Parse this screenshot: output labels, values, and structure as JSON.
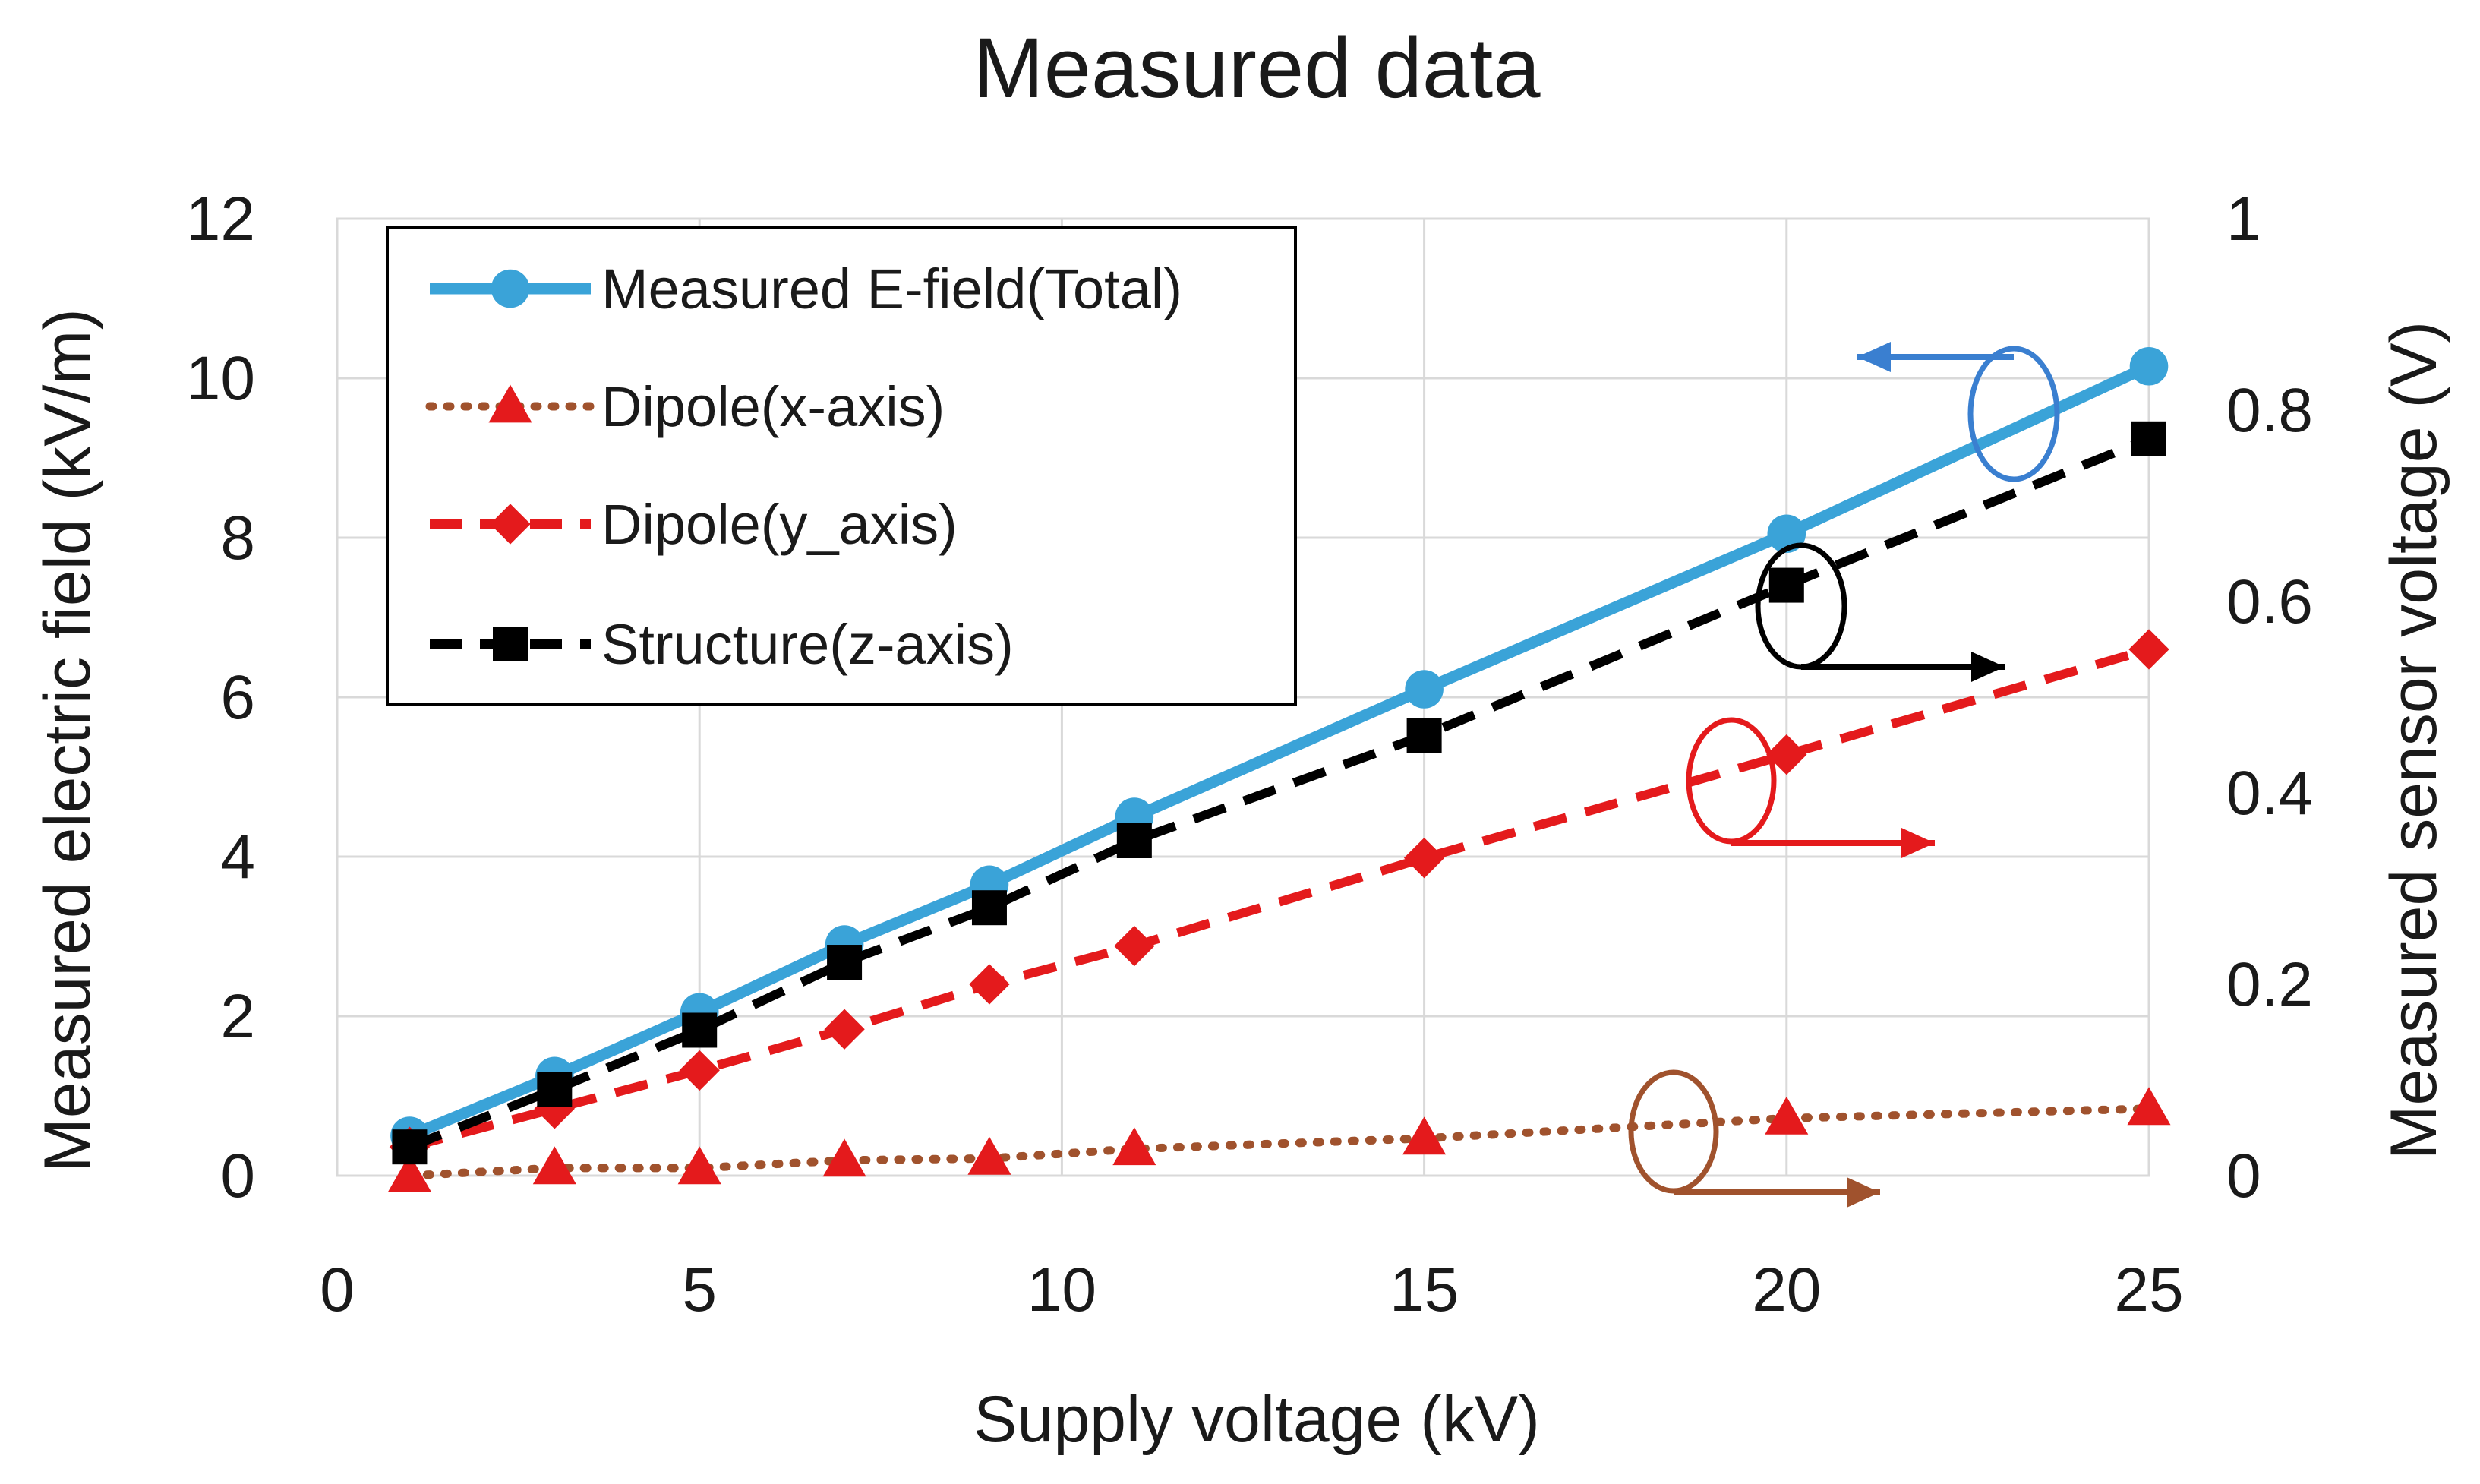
{
  "chart_data": {
    "type": "line",
    "title": "Measured data",
    "xlabel": "Supply voltage (kV)",
    "ylabel": "Measured electric field (kV/m)",
    "y2label": "Measured sensor voltage (V)",
    "xlim": [
      0,
      25
    ],
    "ylim": [
      0,
      12
    ],
    "y2lim": [
      0,
      1
    ],
    "x_ticks": [
      "0",
      "5",
      "10",
      "15",
      "20",
      "25"
    ],
    "y_ticks": [
      "0",
      "2",
      "4",
      "6",
      "8",
      "10",
      "12"
    ],
    "y2_ticks": [
      "0",
      "0.2",
      "0.4",
      "0.6",
      "0.8",
      "1"
    ],
    "grid": true,
    "legend_position": "top-left",
    "x": [
      1,
      3,
      5,
      7,
      9,
      11,
      15,
      20,
      25
    ],
    "series": [
      {
        "name": "Measured E-field(Total)",
        "axis": "left",
        "color": "#3aa3d8",
        "line_style": "solid",
        "marker": "circle",
        "values": [
          0.5,
          1.25,
          2.05,
          2.9,
          3.65,
          4.5,
          6.1,
          8.05,
          10.15
        ]
      },
      {
        "name": "Dipole(x-axis)",
        "axis": "right",
        "color": "#a0522d",
        "marker_color": "#e41a1c",
        "line_style": "dotted",
        "marker": "triangle",
        "values": [
          0.0,
          0.008,
          0.008,
          0.016,
          0.018,
          0.028,
          0.039,
          0.06,
          0.07
        ]
      },
      {
        "name": "Dipole(y_axis)",
        "axis": "right",
        "color": "#e41a1c",
        "line_style": "dashed",
        "marker": "diamond",
        "values": [
          0.03,
          0.07,
          0.11,
          0.153,
          0.2,
          0.24,
          0.332,
          0.44,
          0.55
        ]
      },
      {
        "name": "Structure(z-axis)",
        "axis": "right",
        "color": "#000000",
        "line_style": "dashed",
        "marker": "square",
        "values": [
          0.03,
          0.09,
          0.152,
          0.223,
          0.28,
          0.35,
          0.46,
          0.617,
          0.77
        ]
      }
    ],
    "annotations": [
      {
        "label": "blue-ellipse",
        "series": "Measured E-field(Total)",
        "points_to": "left",
        "color": "#3a7fd0"
      },
      {
        "label": "black-ellipse",
        "series": "Structure(z-axis)",
        "points_to": "right",
        "color": "#000000"
      },
      {
        "label": "red-ellipse",
        "series": "Dipole(y_axis)",
        "points_to": "right",
        "color": "#e41a1c"
      },
      {
        "label": "brown-ellipse",
        "series": "Dipole(x-axis)",
        "points_to": "right",
        "color": "#a0522d"
      }
    ]
  }
}
